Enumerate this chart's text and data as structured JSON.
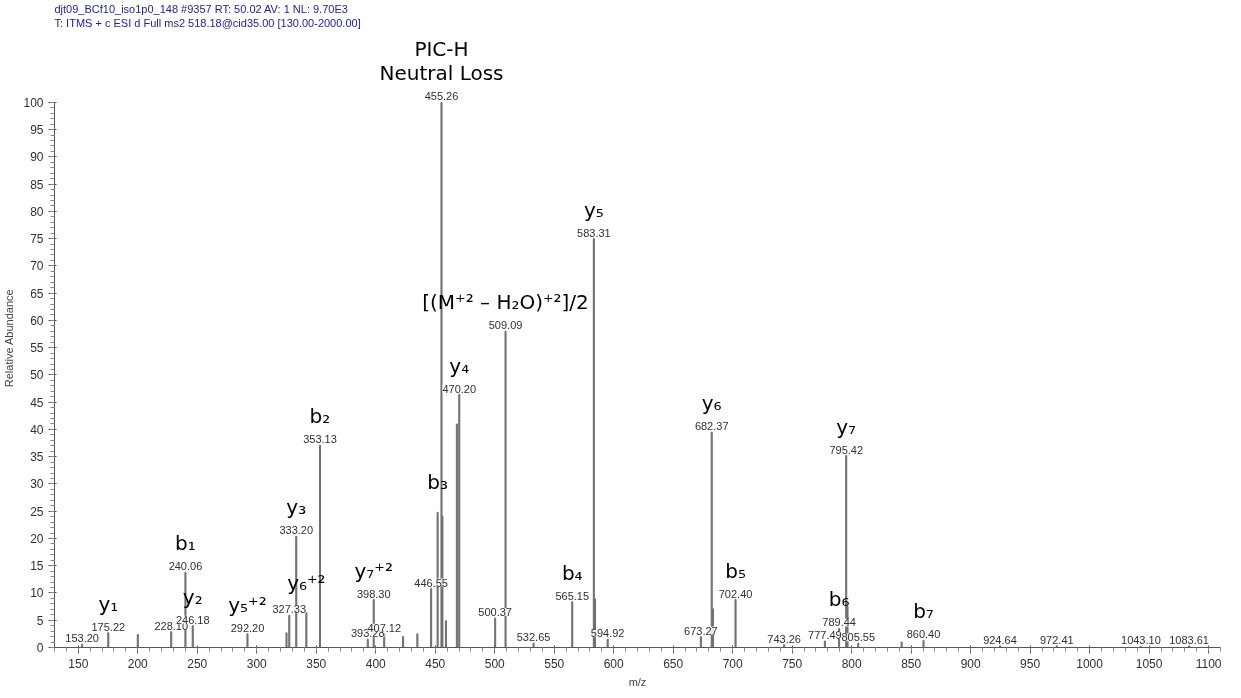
{
  "chart_data": {
    "type": "bar",
    "x": [
      153.2,
      175.22,
      200.0,
      228.1,
      240.06,
      246.18,
      292.2,
      325.0,
      327.33,
      333.2,
      341.7,
      353.13,
      393.28,
      398.3,
      407.12,
      423.0,
      435.0,
      446.55,
      452.0,
      455.26,
      456.0,
      459.0,
      468.2,
      470.2,
      500.37,
      509.09,
      532.65,
      565.15,
      583.31,
      584.3,
      594.92,
      673.27,
      682.37,
      683.4,
      702.4,
      743.26,
      777.49,
      789.44,
      795.42,
      796.5,
      805.55,
      842.0,
      860.4,
      924.64,
      972.41,
      1043.1,
      1083.61
    ],
    "values": [
      0.6,
      2.7,
      2.4,
      2.9,
      13.8,
      4.0,
      2.5,
      2.7,
      5.9,
      20.4,
      6.4,
      37.1,
      1.5,
      8.8,
      2.5,
      2.0,
      2.5,
      10.8,
      24.8,
      100,
      24.1,
      4.9,
      41.0,
      46.4,
      5.4,
      58.0,
      0.8,
      8.4,
      75.0,
      8.9,
      1.5,
      2.0,
      39.5,
      7.1,
      8.8,
      0.5,
      1.2,
      3.5,
      35.2,
      7.6,
      0.8,
      1.0,
      1.3,
      0.3,
      0.3,
      0.2,
      0.3
    ],
    "color": "#707070",
    "xlabel": "m/z",
    "ylabel": "Relative Abundance",
    "xlim": [
      130,
      1110
    ],
    "ylim": [
      0,
      100
    ],
    "xticks": [
      150,
      200,
      250,
      300,
      350,
      400,
      450,
      500,
      550,
      600,
      650,
      700,
      750,
      800,
      850,
      900,
      950,
      1000,
      1050,
      1100
    ],
    "yticks": [
      0,
      5,
      10,
      15,
      20,
      25,
      30,
      35,
      40,
      45,
      50,
      55,
      60,
      65,
      70,
      75,
      80,
      85,
      90,
      95,
      100
    ],
    "grid": false,
    "annotations": [
      "djt09_BCf10_iso1p0_148 #9357   RT: 50.02   AV: 1   NL: 9.70E3",
      "T: ITMS + c ESI d Full ms2 518.18@cid35.00 [130.00-2000.00]",
      {
        "text": "153.20",
        "x": 153.2,
        "y": 0.6
      },
      {
        "text": "175.22",
        "x": 175.22,
        "y": 2.7
      },
      {
        "text": "y₁",
        "x": 175.22,
        "y": 2.7
      },
      {
        "text": "228.10",
        "x": 228.1,
        "y": 2.9
      },
      {
        "text": "240.06",
        "x": 240.06,
        "y": 13.8
      },
      {
        "text": "b₁",
        "x": 240.06,
        "y": 13.8
      },
      {
        "text": "246.18",
        "x": 246.18,
        "y": 4.0
      },
      {
        "text": "y₂",
        "x": 246.18,
        "y": 4.0
      },
      {
        "text": "292.20",
        "x": 292.2,
        "y": 2.5
      },
      {
        "text": "y₅⁺²",
        "x": 292.2,
        "y": 2.5
      },
      {
        "text": "327.33",
        "x": 327.33,
        "y": 5.9
      },
      {
        "text": "333.20",
        "x": 333.2,
        "y": 20.4
      },
      {
        "text": "y₃",
        "x": 333.2,
        "y": 20.4
      },
      {
        "text": "y₆⁺²",
        "x": 341.7,
        "y": 6.4
      },
      {
        "text": "353.13",
        "x": 353.13,
        "y": 37.1
      },
      {
        "text": "b₂",
        "x": 353.13,
        "y": 37.1
      },
      {
        "text": "393.28",
        "x": 393.28,
        "y": 1.5
      },
      {
        "text": "398.30",
        "x": 398.3,
        "y": 8.8
      },
      {
        "text": "y₇⁺²",
        "x": 398.3,
        "y": 8.8
      },
      {
        "text": "407.12",
        "x": 407.12,
        "y": 2.5
      },
      {
        "text": "446.55",
        "x": 446.55,
        "y": 10.8
      },
      {
        "text": "b₃",
        "x": 452.0,
        "y": 24.8
      },
      {
        "text": "455.26",
        "x": 455.26,
        "y": 100
      },
      {
        "text": "Neutral Loss",
        "x": 455.26,
        "y": 100
      },
      {
        "text": "PIC-H",
        "x": 455.26,
        "y": 100
      },
      {
        "text": "470.20",
        "x": 470.2,
        "y": 46.4
      },
      {
        "text": "y₄",
        "x": 470.2,
        "y": 46.4
      },
      {
        "text": "500.37",
        "x": 500.37,
        "y": 5.4
      },
      {
        "text": "509.09",
        "x": 509.09,
        "y": 58.0
      },
      {
        "text": "[(M⁺² – H₂O)⁺²]/2",
        "x": 509.09,
        "y": 58.0
      },
      {
        "text": "532.65",
        "x": 532.65,
        "y": 0.8
      },
      {
        "text": "565.15",
        "x": 565.15,
        "y": 8.4
      },
      {
        "text": "b₄",
        "x": 565.15,
        "y": 8.4
      },
      {
        "text": "583.31",
        "x": 583.31,
        "y": 75.0
      },
      {
        "text": "y₅",
        "x": 583.31,
        "y": 75.0
      },
      {
        "text": "594.92",
        "x": 594.92,
        "y": 1.5
      },
      {
        "text": "673.27",
        "x": 673.27,
        "y": 2.0
      },
      {
        "text": "682.37",
        "x": 682.37,
        "y": 39.5
      },
      {
        "text": "y₆",
        "x": 682.37,
        "y": 39.5
      },
      {
        "text": "702.40",
        "x": 702.4,
        "y": 8.8
      },
      {
        "text": "b₅",
        "x": 702.4,
        "y": 8.8
      },
      {
        "text": "743.26",
        "x": 743.26,
        "y": 0.5
      },
      {
        "text": "777.49",
        "x": 777.49,
        "y": 1.2
      },
      {
        "text": "789.44",
        "x": 789.44,
        "y": 3.5
      },
      {
        "text": "b₆",
        "x": 789.44,
        "y": 3.5
      },
      {
        "text": "795.42",
        "x": 795.42,
        "y": 35.2
      },
      {
        "text": "y₇",
        "x": 795.42,
        "y": 35.2
      },
      {
        "text": "805.55",
        "x": 805.55,
        "y": 0.8
      },
      {
        "text": "860.40",
        "x": 860.4,
        "y": 1.3
      },
      {
        "text": "b₇",
        "x": 860.4,
        "y": 1.3
      },
      {
        "text": "924.64",
        "x": 924.64,
        "y": 0.3
      },
      {
        "text": "972.41",
        "x": 972.41,
        "y": 0.3
      },
      {
        "text": "1043.10",
        "x": 1043.1,
        "y": 0.2
      },
      {
        "text": "1083.61",
        "x": 1083.61,
        "y": 0.3
      }
    ]
  }
}
